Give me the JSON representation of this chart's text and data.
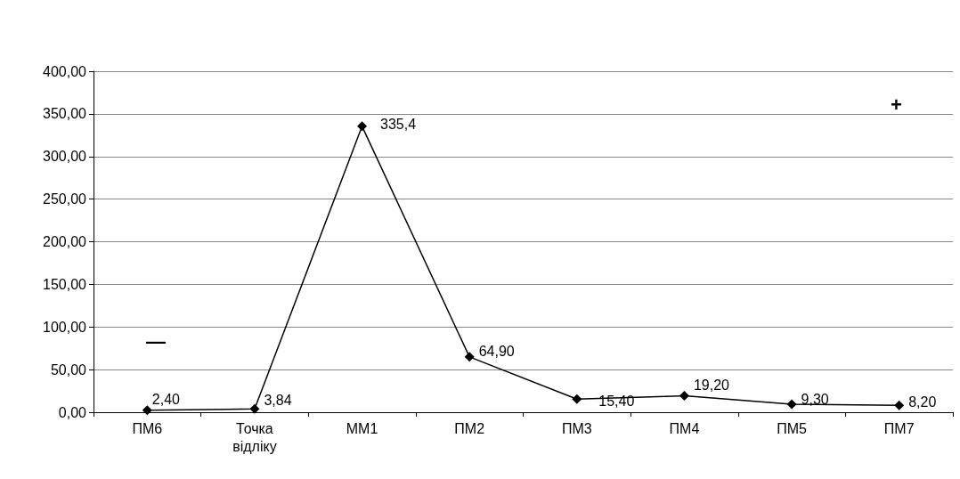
{
  "chart_data": {
    "type": "line",
    "categories": [
      "ПМ6",
      "Точка\nвідліку",
      "ММ1",
      "ПМ2",
      "ПМ3",
      "ПМ4",
      "ПМ5",
      "ПМ7"
    ],
    "series": [
      {
        "color": "#000000",
        "values": [
          2.4,
          3.84,
          335.4,
          64.9,
          15.4,
          19.2,
          9.3,
          8.2
        ],
        "value_labels": [
          "2,40",
          "3,84",
          "335,4",
          "64,90",
          "15,40",
          "19,20",
          "9,30",
          "8,20"
        ]
      }
    ],
    "ylim": [
      0,
      400
    ],
    "yticks": [
      {
        "value": 0,
        "label": "0,00"
      },
      {
        "value": 50,
        "label": "50,00"
      },
      {
        "value": 100,
        "label": "100,00"
      },
      {
        "value": 150,
        "label": "150,00"
      },
      {
        "value": 200,
        "label": "200,00"
      },
      {
        "value": 250,
        "label": "250,00"
      },
      {
        "value": 300,
        "label": "300,00"
      },
      {
        "value": 350,
        "label": "350,00"
      },
      {
        "value": 400,
        "label": "400,00"
      }
    ],
    "grid": "y",
    "marker": "diamond",
    "line_style": "solid",
    "annotations": [
      "—",
      "+"
    ]
  }
}
